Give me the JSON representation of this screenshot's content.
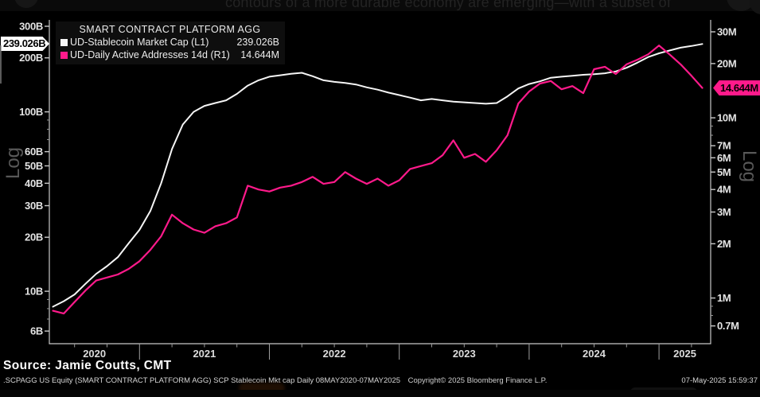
{
  "top_banner": {
    "text": "contours of a more durable economy are emerging—with a subset of"
  },
  "legend": {
    "title": "SMART CONTRACT PLATFORM AGG",
    "series": [
      {
        "label": "UD-Stablecoin Market Cap  (L1)",
        "value": "239.026B"
      },
      {
        "label": "UD-Daily Active Addresses 14d  (R1)",
        "value": "14.644M"
      }
    ]
  },
  "badges": {
    "left": "239.026B",
    "right": "14.644M"
  },
  "axis_labels": {
    "left_log": "Log",
    "right_log": "Log"
  },
  "footer": {
    "source": "Source: Jamie Coutts, CMT",
    "ticker": ".SCPAGG US Equity (SMART CONTRACT PLATFORM AGG) SCP Stablecoin Mkt cap  Daily 08MAY2020-07MAY2025",
    "copyright": "Copyright© 2025 Bloomberg Finance L.P.",
    "timestamp": "07-May-2025 15:59:37"
  },
  "colors": {
    "stablecoin_line": "#f5f5f5",
    "addresses_line": "#ff1a8b",
    "badge_left_bg": "#ffffff",
    "badge_right_bg": "#ff1a8b",
    "background": "#000000"
  },
  "chart_data": {
    "type": "line",
    "title": "SMART CONTRACT PLATFORM AGG",
    "x_unit": "month",
    "x": [
      "2020-05",
      "2020-06",
      "2020-07",
      "2020-08",
      "2020-09",
      "2020-10",
      "2020-11",
      "2020-12",
      "2021-01",
      "2021-02",
      "2021-03",
      "2021-04",
      "2021-05",
      "2021-06",
      "2021-07",
      "2021-08",
      "2021-09",
      "2021-10",
      "2021-11",
      "2021-12",
      "2022-01",
      "2022-02",
      "2022-03",
      "2022-04",
      "2022-05",
      "2022-06",
      "2022-07",
      "2022-08",
      "2022-09",
      "2022-10",
      "2022-11",
      "2022-12",
      "2023-01",
      "2023-02",
      "2023-03",
      "2023-04",
      "2023-05",
      "2023-06",
      "2023-07",
      "2023-08",
      "2023-09",
      "2023-10",
      "2023-11",
      "2023-12",
      "2024-01",
      "2024-02",
      "2024-03",
      "2024-04",
      "2024-05",
      "2024-06",
      "2024-07",
      "2024-08",
      "2024-09",
      "2024-10",
      "2024-11",
      "2024-12",
      "2025-01",
      "2025-02",
      "2025-03",
      "2025-04",
      "2025-05"
    ],
    "x_ticks_years": [
      "2020",
      "2021",
      "2022",
      "2023",
      "2024",
      "2025"
    ],
    "left_axis": {
      "scale": "log",
      "unit": "B USD",
      "range": [
        6,
        300
      ],
      "minor_ticks": [
        90,
        80,
        70,
        9,
        8,
        7
      ],
      "ticks": [
        {
          "v": 300,
          "label": "300B"
        },
        {
          "v": 200,
          "label": "200B"
        },
        {
          "v": 100,
          "label": "100B"
        },
        {
          "v": 60,
          "label": "60B"
        },
        {
          "v": 50,
          "label": "50B"
        },
        {
          "v": 40,
          "label": "40B"
        },
        {
          "v": 30,
          "label": "30B"
        },
        {
          "v": 20,
          "label": "20B"
        },
        {
          "v": 10,
          "label": "10B"
        },
        {
          "v": 6,
          "label": "6B"
        }
      ]
    },
    "right_axis": {
      "scale": "log",
      "unit": "M addresses",
      "range": [
        0.7,
        30
      ],
      "minor_ticks": [
        9,
        8,
        0.9,
        0.8
      ],
      "ticks": [
        {
          "v": 30,
          "label": "30M"
        },
        {
          "v": 20,
          "label": "20M"
        },
        {
          "v": 10,
          "label": "10M"
        },
        {
          "v": 7,
          "label": "7M"
        },
        {
          "v": 6,
          "label": "6M"
        },
        {
          "v": 5,
          "label": "5M"
        },
        {
          "v": 4,
          "label": "4M"
        },
        {
          "v": 3,
          "label": "3M"
        },
        {
          "v": 2,
          "label": "2M"
        },
        {
          "v": 1,
          "label": "1M"
        },
        {
          "v": 0.7,
          "label": "0.7M"
        }
      ]
    },
    "series": [
      {
        "name": "UD-Stablecoin Market Cap (L1)",
        "axis": "left",
        "unit": "B",
        "color": "#f5f5f5",
        "last_value_label": "239.026B",
        "values": [
          8.2,
          8.8,
          9.6,
          11.0,
          12.5,
          13.8,
          15.5,
          18.5,
          22,
          28,
          40,
          62,
          85,
          100,
          108,
          112,
          116,
          126,
          140,
          150,
          157,
          160,
          163,
          165,
          158,
          150,
          147,
          145,
          142,
          137,
          133,
          128,
          124,
          120,
          116,
          118,
          116,
          114,
          113,
          112,
          111,
          112,
          122,
          135,
          143,
          148,
          155,
          157,
          159,
          161,
          162,
          164,
          168,
          176,
          188,
          202,
          212,
          220,
          228,
          233,
          239.026
        ]
      },
      {
        "name": "UD-Daily Active Addresses 14d (R1)",
        "axis": "right",
        "unit": "M",
        "color": "#ff1a8b",
        "last_value_label": "14.644M",
        "values": [
          0.85,
          0.82,
          0.95,
          1.1,
          1.25,
          1.3,
          1.35,
          1.45,
          1.6,
          1.85,
          2.2,
          2.9,
          2.6,
          2.4,
          2.3,
          2.5,
          2.6,
          2.8,
          4.2,
          4.0,
          3.9,
          4.1,
          4.2,
          4.4,
          4.7,
          4.3,
          4.4,
          5.0,
          4.6,
          4.3,
          4.6,
          4.2,
          4.5,
          5.2,
          5.4,
          5.6,
          6.2,
          7.5,
          6.0,
          6.3,
          5.7,
          6.6,
          8.0,
          12.0,
          14.0,
          15.5,
          16.0,
          14.4,
          15.0,
          13.7,
          18.6,
          19.2,
          17.5,
          19.8,
          21.0,
          22.5,
          25.2,
          22.4,
          19.8,
          17.1,
          14.644
        ]
      }
    ]
  }
}
